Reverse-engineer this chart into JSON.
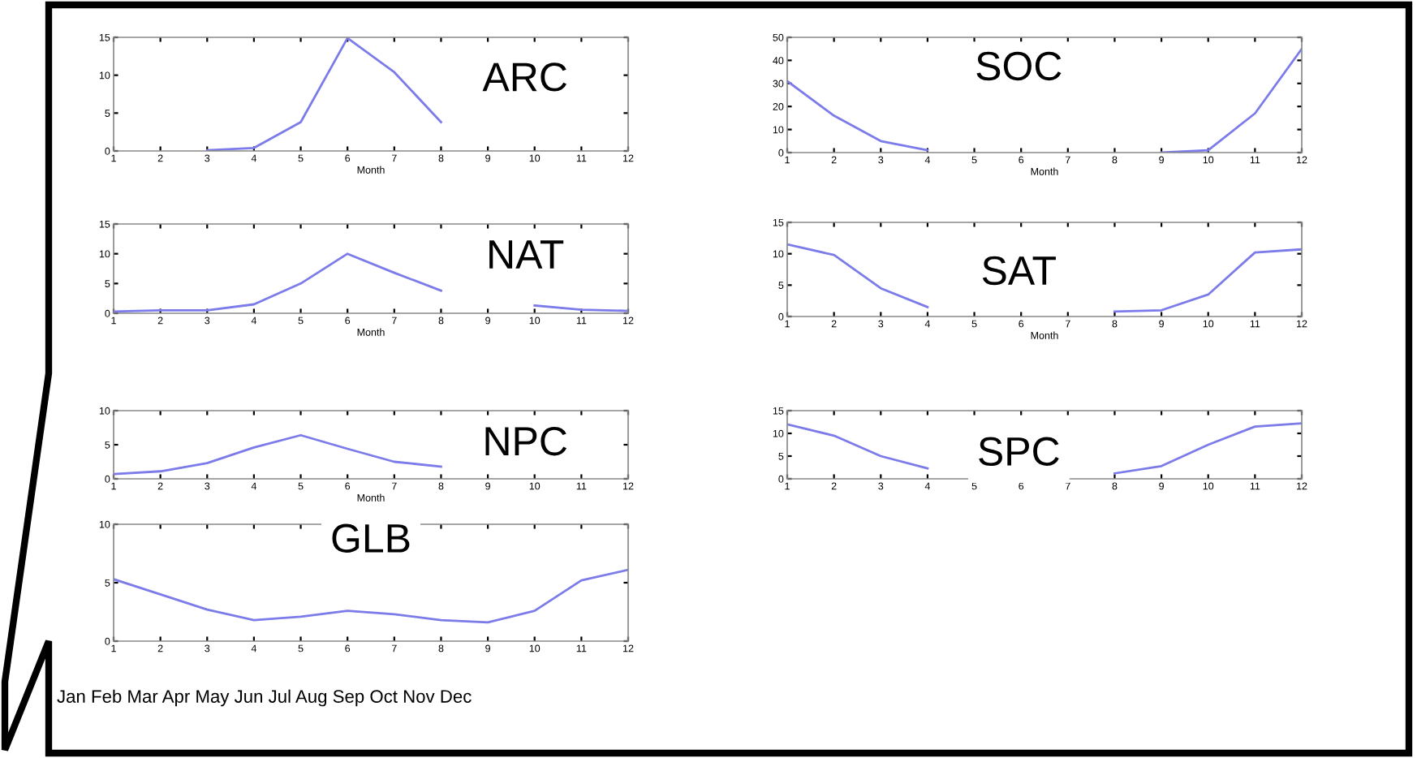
{
  "chart_data": [
    {
      "type": "line",
      "title": "ARC",
      "xlabel": "Month",
      "x": [
        3,
        4,
        5,
        6,
        7,
        8
      ],
      "xlim": [
        1,
        12
      ],
      "xticks": [
        1,
        2,
        3,
        4,
        5,
        6,
        7,
        8,
        9,
        10,
        11,
        12
      ],
      "ylim": [
        0,
        15
      ],
      "yticks": [
        0,
        5,
        10,
        15
      ],
      "series": [
        {
          "color": "#7b7bea",
          "values": [
            0.1,
            0.4,
            3.8,
            14.9,
            10.4,
            3.8
          ]
        }
      ]
    },
    {
      "type": "line",
      "title": "SOC",
      "xlabel": "Month",
      "x": [
        1,
        2,
        3,
        4,
        5,
        6,
        7,
        8,
        9,
        10,
        11,
        12
      ],
      "xlim": [
        1,
        12
      ],
      "xticks": [
        1,
        2,
        3,
        4,
        5,
        6,
        7,
        8,
        9,
        10,
        11,
        12
      ],
      "ylim": [
        0,
        50
      ],
      "yticks": [
        0,
        10,
        20,
        30,
        40,
        50
      ],
      "series": [
        {
          "color": "#7b7bea",
          "values": [
            31,
            16,
            5,
            1,
            null,
            null,
            null,
            null,
            0,
            1,
            17,
            45
          ]
        }
      ]
    },
    {
      "type": "line",
      "title": "NAT",
      "xlabel": "Month",
      "x": [
        1,
        2,
        3,
        4,
        5,
        6,
        7,
        8,
        9,
        10,
        11,
        12
      ],
      "xlim": [
        1,
        12
      ],
      "xticks": [
        1,
        2,
        3,
        4,
        5,
        6,
        7,
        8,
        9,
        10,
        11,
        12
      ],
      "ylim": [
        0,
        15
      ],
      "yticks": [
        0,
        5,
        10,
        15
      ],
      "series": [
        {
          "color": "#7b7bea",
          "values": [
            0.3,
            0.5,
            0.5,
            1.5,
            5,
            10,
            6.8,
            3.8,
            null,
            1.3,
            0.6,
            0.4
          ]
        }
      ]
    },
    {
      "type": "line",
      "title": "SAT",
      "xlabel": "Month",
      "x": [
        1,
        2,
        3,
        4,
        5,
        6,
        7,
        8,
        9,
        10,
        11,
        12
      ],
      "xlim": [
        1,
        12
      ],
      "xticks": [
        1,
        2,
        3,
        4,
        5,
        6,
        7,
        8,
        9,
        10,
        11,
        12
      ],
      "ylim": [
        0,
        15
      ],
      "yticks": [
        0,
        5,
        10,
        15
      ],
      "series": [
        {
          "color": "#7b7bea",
          "values": [
            11.5,
            9.8,
            4.5,
            1.5,
            null,
            null,
            null,
            0.8,
            1,
            3.5,
            10.2,
            10.7
          ]
        }
      ]
    },
    {
      "type": "line",
      "title": "NPC",
      "xlabel": "Month",
      "x": [
        1,
        2,
        3,
        4,
        5,
        6,
        7,
        8
      ],
      "xlim": [
        1,
        12
      ],
      "xticks": [
        1,
        2,
        3,
        4,
        5,
        6,
        7,
        8,
        9,
        10,
        11,
        12
      ],
      "ylim": [
        0,
        10
      ],
      "yticks": [
        0,
        5,
        10
      ],
      "series": [
        {
          "color": "#7b7bea",
          "values": [
            0.7,
            1.1,
            2.3,
            4.6,
            6.4,
            4.4,
            2.5,
            1.8
          ]
        }
      ]
    },
    {
      "type": "line",
      "title": "SPC",
      "x": [
        1,
        2,
        3,
        4,
        5,
        6,
        7,
        8,
        9,
        10,
        11,
        12
      ],
      "xlim": [
        1,
        12
      ],
      "xticks": [
        1,
        2,
        3,
        4,
        5,
        6,
        7,
        8,
        9,
        10,
        11,
        12
      ],
      "ylim": [
        0,
        15
      ],
      "yticks": [
        0,
        5,
        10,
        15
      ],
      "series": [
        {
          "color": "#7b7bea",
          "values": [
            12,
            9.5,
            5,
            2.3,
            null,
            null,
            null,
            1.2,
            2.8,
            7.5,
            11.5,
            12.2
          ]
        }
      ]
    },
    {
      "type": "line",
      "title": "GLB",
      "x": [
        1,
        2,
        3,
        4,
        5,
        6,
        7,
        8,
        9,
        10,
        11,
        12
      ],
      "xlim": [
        1,
        12
      ],
      "xticks": [
        1,
        2,
        3,
        4,
        5,
        6,
        7,
        8,
        9,
        10,
        11,
        12
      ],
      "ylim": [
        0,
        10
      ],
      "yticks": [
        0,
        5,
        10
      ],
      "series": [
        {
          "color": "#7b7bea",
          "values": [
            5.3,
            4.0,
            2.7,
            1.8,
            2.1,
            2.6,
            2.3,
            1.8,
            1.6,
            2.6,
            5.2,
            6.1
          ]
        }
      ],
      "annotations": [
        "Jan Feb Mar Apr May Jun Jul Aug Sep Oct Nov Dec"
      ]
    }
  ]
}
